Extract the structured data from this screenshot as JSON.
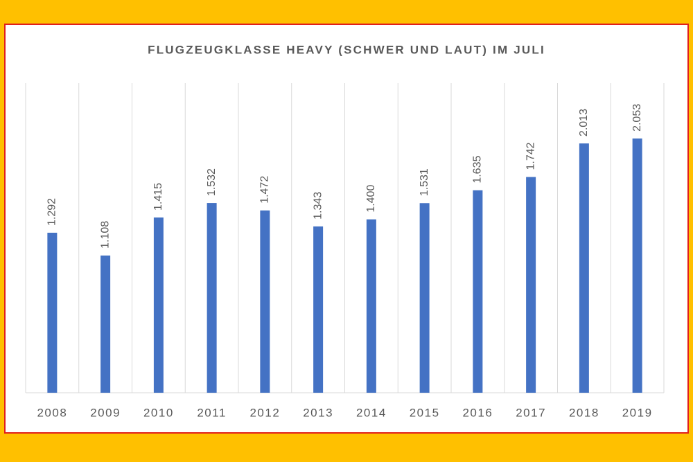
{
  "chart_data": {
    "type": "bar",
    "title": "FLUGZEUGKLASSE HEAVY (SCHWER UND LAUT) IM JULI",
    "categories": [
      "2008",
      "2009",
      "2010",
      "2011",
      "2012",
      "2013",
      "2014",
      "2015",
      "2016",
      "2017",
      "2018",
      "2019"
    ],
    "values": [
      1292,
      1108,
      1415,
      1532,
      1472,
      1343,
      1400,
      1531,
      1635,
      1742,
      2013,
      2053
    ],
    "value_labels": [
      "1.292",
      "1.108",
      "1.415",
      "1.532",
      "1.472",
      "1.343",
      "1.400",
      "1.531",
      "1.635",
      "1.742",
      "2.013",
      "2.053"
    ],
    "color": "#4472C4",
    "ylim": [
      0,
      2500
    ]
  }
}
